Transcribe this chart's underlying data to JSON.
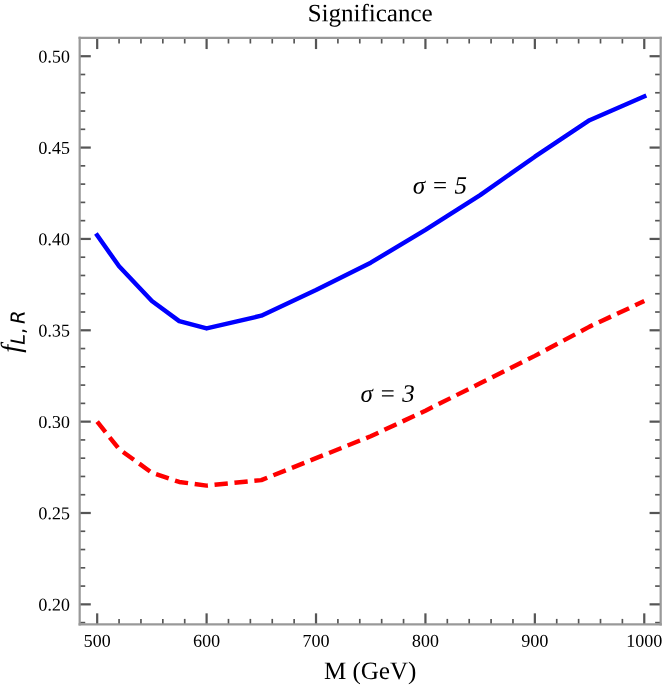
{
  "chart_data": {
    "type": "line",
    "title": "Significance",
    "xlabel": "M (GeV)",
    "ylabel": "f$_{L,R}$",
    "x": [
      500,
      520,
      550,
      575,
      600,
      650,
      700,
      750,
      800,
      850,
      900,
      950,
      1000
    ],
    "series": [
      {
        "color": "#0000ff",
        "line_style": "solid",
        "values": [
          0.402,
          0.385,
          0.366,
          0.355,
          0.351,
          0.358,
          0.372,
          0.387,
          0.405,
          0.424,
          0.445,
          0.465,
          0.478
        ]
      },
      {
        "color": "#ff0000",
        "line_style": "dashed",
        "values": [
          0.3,
          0.285,
          0.272,
          0.267,
          0.265,
          0.268,
          0.28,
          0.292,
          0.306,
          0.321,
          0.336,
          0.352,
          0.366
        ]
      }
    ],
    "annotations": [
      "σ = 5",
      "σ = 3"
    ],
    "xlim": [
      484,
      1015
    ],
    "xticks": [
      500,
      600,
      700,
      800,
      900,
      1000
    ],
    "ylim": [
      0.189,
      0.51
    ],
    "yticks": [
      {
        "value": 0.2,
        "label": "0.20"
      },
      {
        "value": 0.25,
        "label": "0.25"
      },
      {
        "value": 0.3,
        "label": "0.30"
      },
      {
        "value": 0.35,
        "label": "0.35"
      },
      {
        "value": 0.4,
        "label": "0.40"
      },
      {
        "value": 0.45,
        "label": "0.45"
      },
      {
        "value": 0.5,
        "label": "0.50"
      }
    ],
    "grid": false,
    "legend": false,
    "marker": "none"
  }
}
